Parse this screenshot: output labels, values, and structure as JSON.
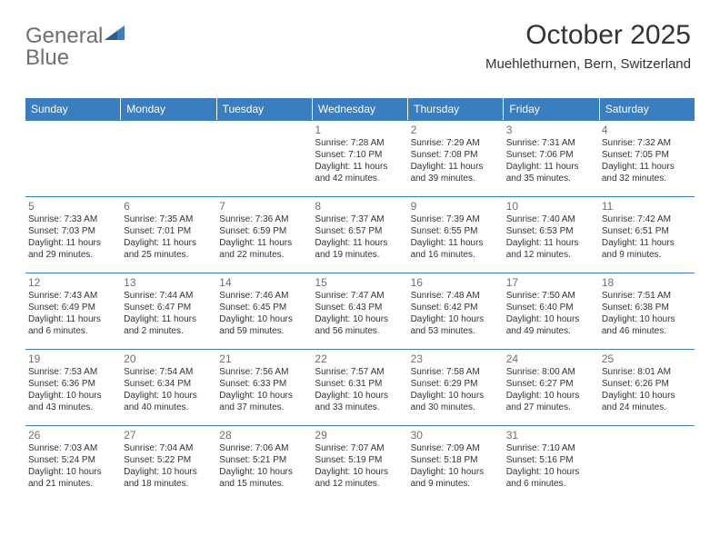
{
  "brand": {
    "text1": "General",
    "text2": "Blue"
  },
  "title": "October 2025",
  "location": "Muehlethurnen, Bern, Switzerland",
  "colors": {
    "brand_blue": "#3a7ebf",
    "brand_gray": "#6f6f6f",
    "text": "#333333",
    "bg": "#ffffff"
  },
  "days_of_week": [
    "Sunday",
    "Monday",
    "Tuesday",
    "Wednesday",
    "Thursday",
    "Friday",
    "Saturday"
  ],
  "weeks": [
    [
      {},
      {},
      {},
      {
        "n": "1",
        "sunrise": "Sunrise: 7:28 AM",
        "sunset": "Sunset: 7:10 PM",
        "dl1": "Daylight: 11 hours",
        "dl2": "and 42 minutes."
      },
      {
        "n": "2",
        "sunrise": "Sunrise: 7:29 AM",
        "sunset": "Sunset: 7:08 PM",
        "dl1": "Daylight: 11 hours",
        "dl2": "and 39 minutes."
      },
      {
        "n": "3",
        "sunrise": "Sunrise: 7:31 AM",
        "sunset": "Sunset: 7:06 PM",
        "dl1": "Daylight: 11 hours",
        "dl2": "and 35 minutes."
      },
      {
        "n": "4",
        "sunrise": "Sunrise: 7:32 AM",
        "sunset": "Sunset: 7:05 PM",
        "dl1": "Daylight: 11 hours",
        "dl2": "and 32 minutes."
      }
    ],
    [
      {
        "n": "5",
        "sunrise": "Sunrise: 7:33 AM",
        "sunset": "Sunset: 7:03 PM",
        "dl1": "Daylight: 11 hours",
        "dl2": "and 29 minutes."
      },
      {
        "n": "6",
        "sunrise": "Sunrise: 7:35 AM",
        "sunset": "Sunset: 7:01 PM",
        "dl1": "Daylight: 11 hours",
        "dl2": "and 25 minutes."
      },
      {
        "n": "7",
        "sunrise": "Sunrise: 7:36 AM",
        "sunset": "Sunset: 6:59 PM",
        "dl1": "Daylight: 11 hours",
        "dl2": "and 22 minutes."
      },
      {
        "n": "8",
        "sunrise": "Sunrise: 7:37 AM",
        "sunset": "Sunset: 6:57 PM",
        "dl1": "Daylight: 11 hours",
        "dl2": "and 19 minutes."
      },
      {
        "n": "9",
        "sunrise": "Sunrise: 7:39 AM",
        "sunset": "Sunset: 6:55 PM",
        "dl1": "Daylight: 11 hours",
        "dl2": "and 16 minutes."
      },
      {
        "n": "10",
        "sunrise": "Sunrise: 7:40 AM",
        "sunset": "Sunset: 6:53 PM",
        "dl1": "Daylight: 11 hours",
        "dl2": "and 12 minutes."
      },
      {
        "n": "11",
        "sunrise": "Sunrise: 7:42 AM",
        "sunset": "Sunset: 6:51 PM",
        "dl1": "Daylight: 11 hours",
        "dl2": "and 9 minutes."
      }
    ],
    [
      {
        "n": "12",
        "sunrise": "Sunrise: 7:43 AM",
        "sunset": "Sunset: 6:49 PM",
        "dl1": "Daylight: 11 hours",
        "dl2": "and 6 minutes."
      },
      {
        "n": "13",
        "sunrise": "Sunrise: 7:44 AM",
        "sunset": "Sunset: 6:47 PM",
        "dl1": "Daylight: 11 hours",
        "dl2": "and 2 minutes."
      },
      {
        "n": "14",
        "sunrise": "Sunrise: 7:46 AM",
        "sunset": "Sunset: 6:45 PM",
        "dl1": "Daylight: 10 hours",
        "dl2": "and 59 minutes."
      },
      {
        "n": "15",
        "sunrise": "Sunrise: 7:47 AM",
        "sunset": "Sunset: 6:43 PM",
        "dl1": "Daylight: 10 hours",
        "dl2": "and 56 minutes."
      },
      {
        "n": "16",
        "sunrise": "Sunrise: 7:48 AM",
        "sunset": "Sunset: 6:42 PM",
        "dl1": "Daylight: 10 hours",
        "dl2": "and 53 minutes."
      },
      {
        "n": "17",
        "sunrise": "Sunrise: 7:50 AM",
        "sunset": "Sunset: 6:40 PM",
        "dl1": "Daylight: 10 hours",
        "dl2": "and 49 minutes."
      },
      {
        "n": "18",
        "sunrise": "Sunrise: 7:51 AM",
        "sunset": "Sunset: 6:38 PM",
        "dl1": "Daylight: 10 hours",
        "dl2": "and 46 minutes."
      }
    ],
    [
      {
        "n": "19",
        "sunrise": "Sunrise: 7:53 AM",
        "sunset": "Sunset: 6:36 PM",
        "dl1": "Daylight: 10 hours",
        "dl2": "and 43 minutes."
      },
      {
        "n": "20",
        "sunrise": "Sunrise: 7:54 AM",
        "sunset": "Sunset: 6:34 PM",
        "dl1": "Daylight: 10 hours",
        "dl2": "and 40 minutes."
      },
      {
        "n": "21",
        "sunrise": "Sunrise: 7:56 AM",
        "sunset": "Sunset: 6:33 PM",
        "dl1": "Daylight: 10 hours",
        "dl2": "and 37 minutes."
      },
      {
        "n": "22",
        "sunrise": "Sunrise: 7:57 AM",
        "sunset": "Sunset: 6:31 PM",
        "dl1": "Daylight: 10 hours",
        "dl2": "and 33 minutes."
      },
      {
        "n": "23",
        "sunrise": "Sunrise: 7:58 AM",
        "sunset": "Sunset: 6:29 PM",
        "dl1": "Daylight: 10 hours",
        "dl2": "and 30 minutes."
      },
      {
        "n": "24",
        "sunrise": "Sunrise: 8:00 AM",
        "sunset": "Sunset: 6:27 PM",
        "dl1": "Daylight: 10 hours",
        "dl2": "and 27 minutes."
      },
      {
        "n": "25",
        "sunrise": "Sunrise: 8:01 AM",
        "sunset": "Sunset: 6:26 PM",
        "dl1": "Daylight: 10 hours",
        "dl2": "and 24 minutes."
      }
    ],
    [
      {
        "n": "26",
        "sunrise": "Sunrise: 7:03 AM",
        "sunset": "Sunset: 5:24 PM",
        "dl1": "Daylight: 10 hours",
        "dl2": "and 21 minutes."
      },
      {
        "n": "27",
        "sunrise": "Sunrise: 7:04 AM",
        "sunset": "Sunset: 5:22 PM",
        "dl1": "Daylight: 10 hours",
        "dl2": "and 18 minutes."
      },
      {
        "n": "28",
        "sunrise": "Sunrise: 7:06 AM",
        "sunset": "Sunset: 5:21 PM",
        "dl1": "Daylight: 10 hours",
        "dl2": "and 15 minutes."
      },
      {
        "n": "29",
        "sunrise": "Sunrise: 7:07 AM",
        "sunset": "Sunset: 5:19 PM",
        "dl1": "Daylight: 10 hours",
        "dl2": "and 12 minutes."
      },
      {
        "n": "30",
        "sunrise": "Sunrise: 7:09 AM",
        "sunset": "Sunset: 5:18 PM",
        "dl1": "Daylight: 10 hours",
        "dl2": "and 9 minutes."
      },
      {
        "n": "31",
        "sunrise": "Sunrise: 7:10 AM",
        "sunset": "Sunset: 5:16 PM",
        "dl1": "Daylight: 10 hours",
        "dl2": "and 6 minutes."
      },
      {}
    ]
  ]
}
